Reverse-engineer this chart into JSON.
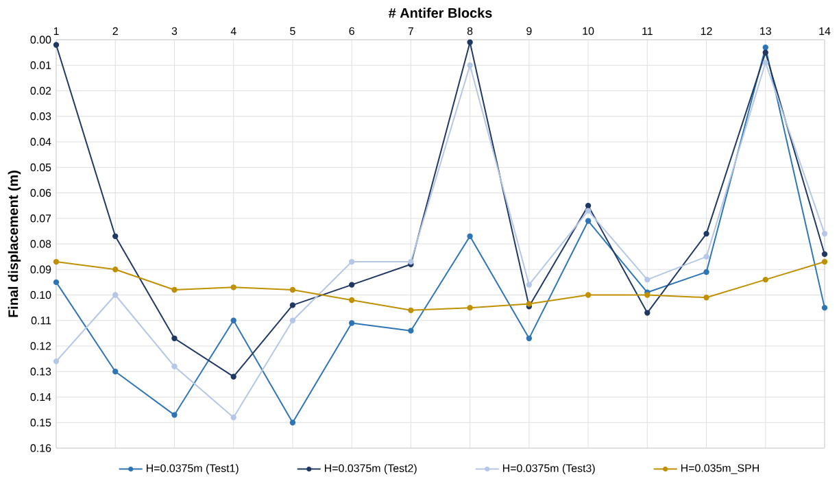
{
  "chart_data": {
    "type": "line",
    "xlabel": "# Antifer Blocks",
    "ylabel": "Final displacement (m)",
    "x": [
      1,
      2,
      3,
      4,
      5,
      6,
      7,
      8,
      9,
      10,
      11,
      12,
      13,
      14
    ],
    "series": [
      {
        "name": "H=0.0375m (Test1)",
        "color": "#2e75b6",
        "values": [
          0.095,
          0.13,
          0.147,
          0.11,
          0.15,
          0.111,
          0.114,
          0.077,
          0.117,
          0.071,
          0.099,
          0.091,
          0.003,
          0.105
        ]
      },
      {
        "name": "H=0.0375m (Test2)",
        "color": "#1f3864",
        "values": [
          0.002,
          0.077,
          0.117,
          0.132,
          0.104,
          0.096,
          0.088,
          0.001,
          0.1045,
          0.065,
          0.107,
          0.076,
          0.005,
          0.084
        ]
      },
      {
        "name": "H=0.0375m (Test3)",
        "color": "#b4c7e7",
        "values": [
          0.126,
          0.1,
          0.128,
          0.148,
          0.11,
          0.087,
          0.087,
          0.01,
          0.096,
          0.067,
          0.094,
          0.085,
          0.009,
          0.076
        ]
      },
      {
        "name": "H=0.035m_SPH",
        "color": "#bf9000",
        "values": [
          0.087,
          0.09,
          0.098,
          0.097,
          0.098,
          0.102,
          0.106,
          0.105,
          0.1035,
          0.1,
          0.1,
          0.101,
          0.094,
          0.087
        ]
      }
    ],
    "xlim": [
      1,
      14
    ],
    "xticks": [
      1,
      2,
      3,
      4,
      5,
      6,
      7,
      8,
      9,
      10,
      11,
      12,
      13,
      14
    ],
    "ylim": [
      0.16,
      0
    ],
    "yticks": [
      {
        "value": 0,
        "label": "0.00"
      },
      {
        "value": 0.01,
        "label": "0.01"
      },
      {
        "value": 0.02,
        "label": "0.02"
      },
      {
        "value": 0.03,
        "label": "0.03"
      },
      {
        "value": 0.04,
        "label": "0.04"
      },
      {
        "value": 0.05,
        "label": "0.05"
      },
      {
        "value": 0.06,
        "label": "0.06"
      },
      {
        "value": 0.07,
        "label": "0.07"
      },
      {
        "value": 0.08,
        "label": "0.08"
      },
      {
        "value": 0.09,
        "label": "0.09"
      },
      {
        "value": 0.1,
        "label": "0.10"
      },
      {
        "value": 0.11,
        "label": "0.11"
      },
      {
        "value": 0.12,
        "label": "0.12"
      },
      {
        "value": 0.13,
        "label": "0.13"
      },
      {
        "value": 0.14,
        "label": "0.14"
      },
      {
        "value": 0.15,
        "label": "0.15"
      },
      {
        "value": 0.16,
        "label": "0.16"
      }
    ],
    "grid": true,
    "legend": "bottom",
    "marker": "circle",
    "line_style": "solid"
  }
}
